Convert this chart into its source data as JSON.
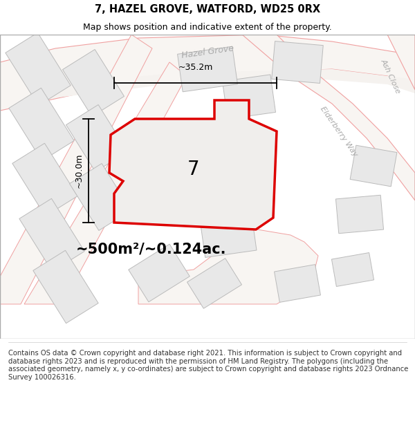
{
  "title": "7, HAZEL GROVE, WATFORD, WD25 0RX",
  "subtitle": "Map shows position and indicative extent of the property.",
  "area_text": "~500m²/~0.124ac.",
  "dim_width": "~35.2m",
  "dim_height": "~30.0m",
  "property_label": "7",
  "footer_text": "Contains OS data © Crown copyright and database right 2021. This information is subject to Crown copyright and database rights 2023 and is reproduced with the permission of HM Land Registry. The polygons (including the associated geometry, namely x, y co-ordinates) are subject to Crown copyright and database rights 2023 Ordnance Survey 100026316.",
  "bg_color": "#ffffff",
  "building_fill": "#e8e8e8",
  "building_stroke": "#bbbbbb",
  "road_line_color": "#f0a0a0",
  "road_fill": "#f5f0ee",
  "property_fill": "#f0eeec",
  "property_stroke": "#dd0000",
  "dim_color": "#000000",
  "text_color": "#000000",
  "street_label_color": "#aaaaaa",
  "title_fontsize": 10.5,
  "subtitle_fontsize": 9,
  "area_fontsize": 15,
  "footer_fontsize": 7.2,
  "prop_lw": 2.5
}
